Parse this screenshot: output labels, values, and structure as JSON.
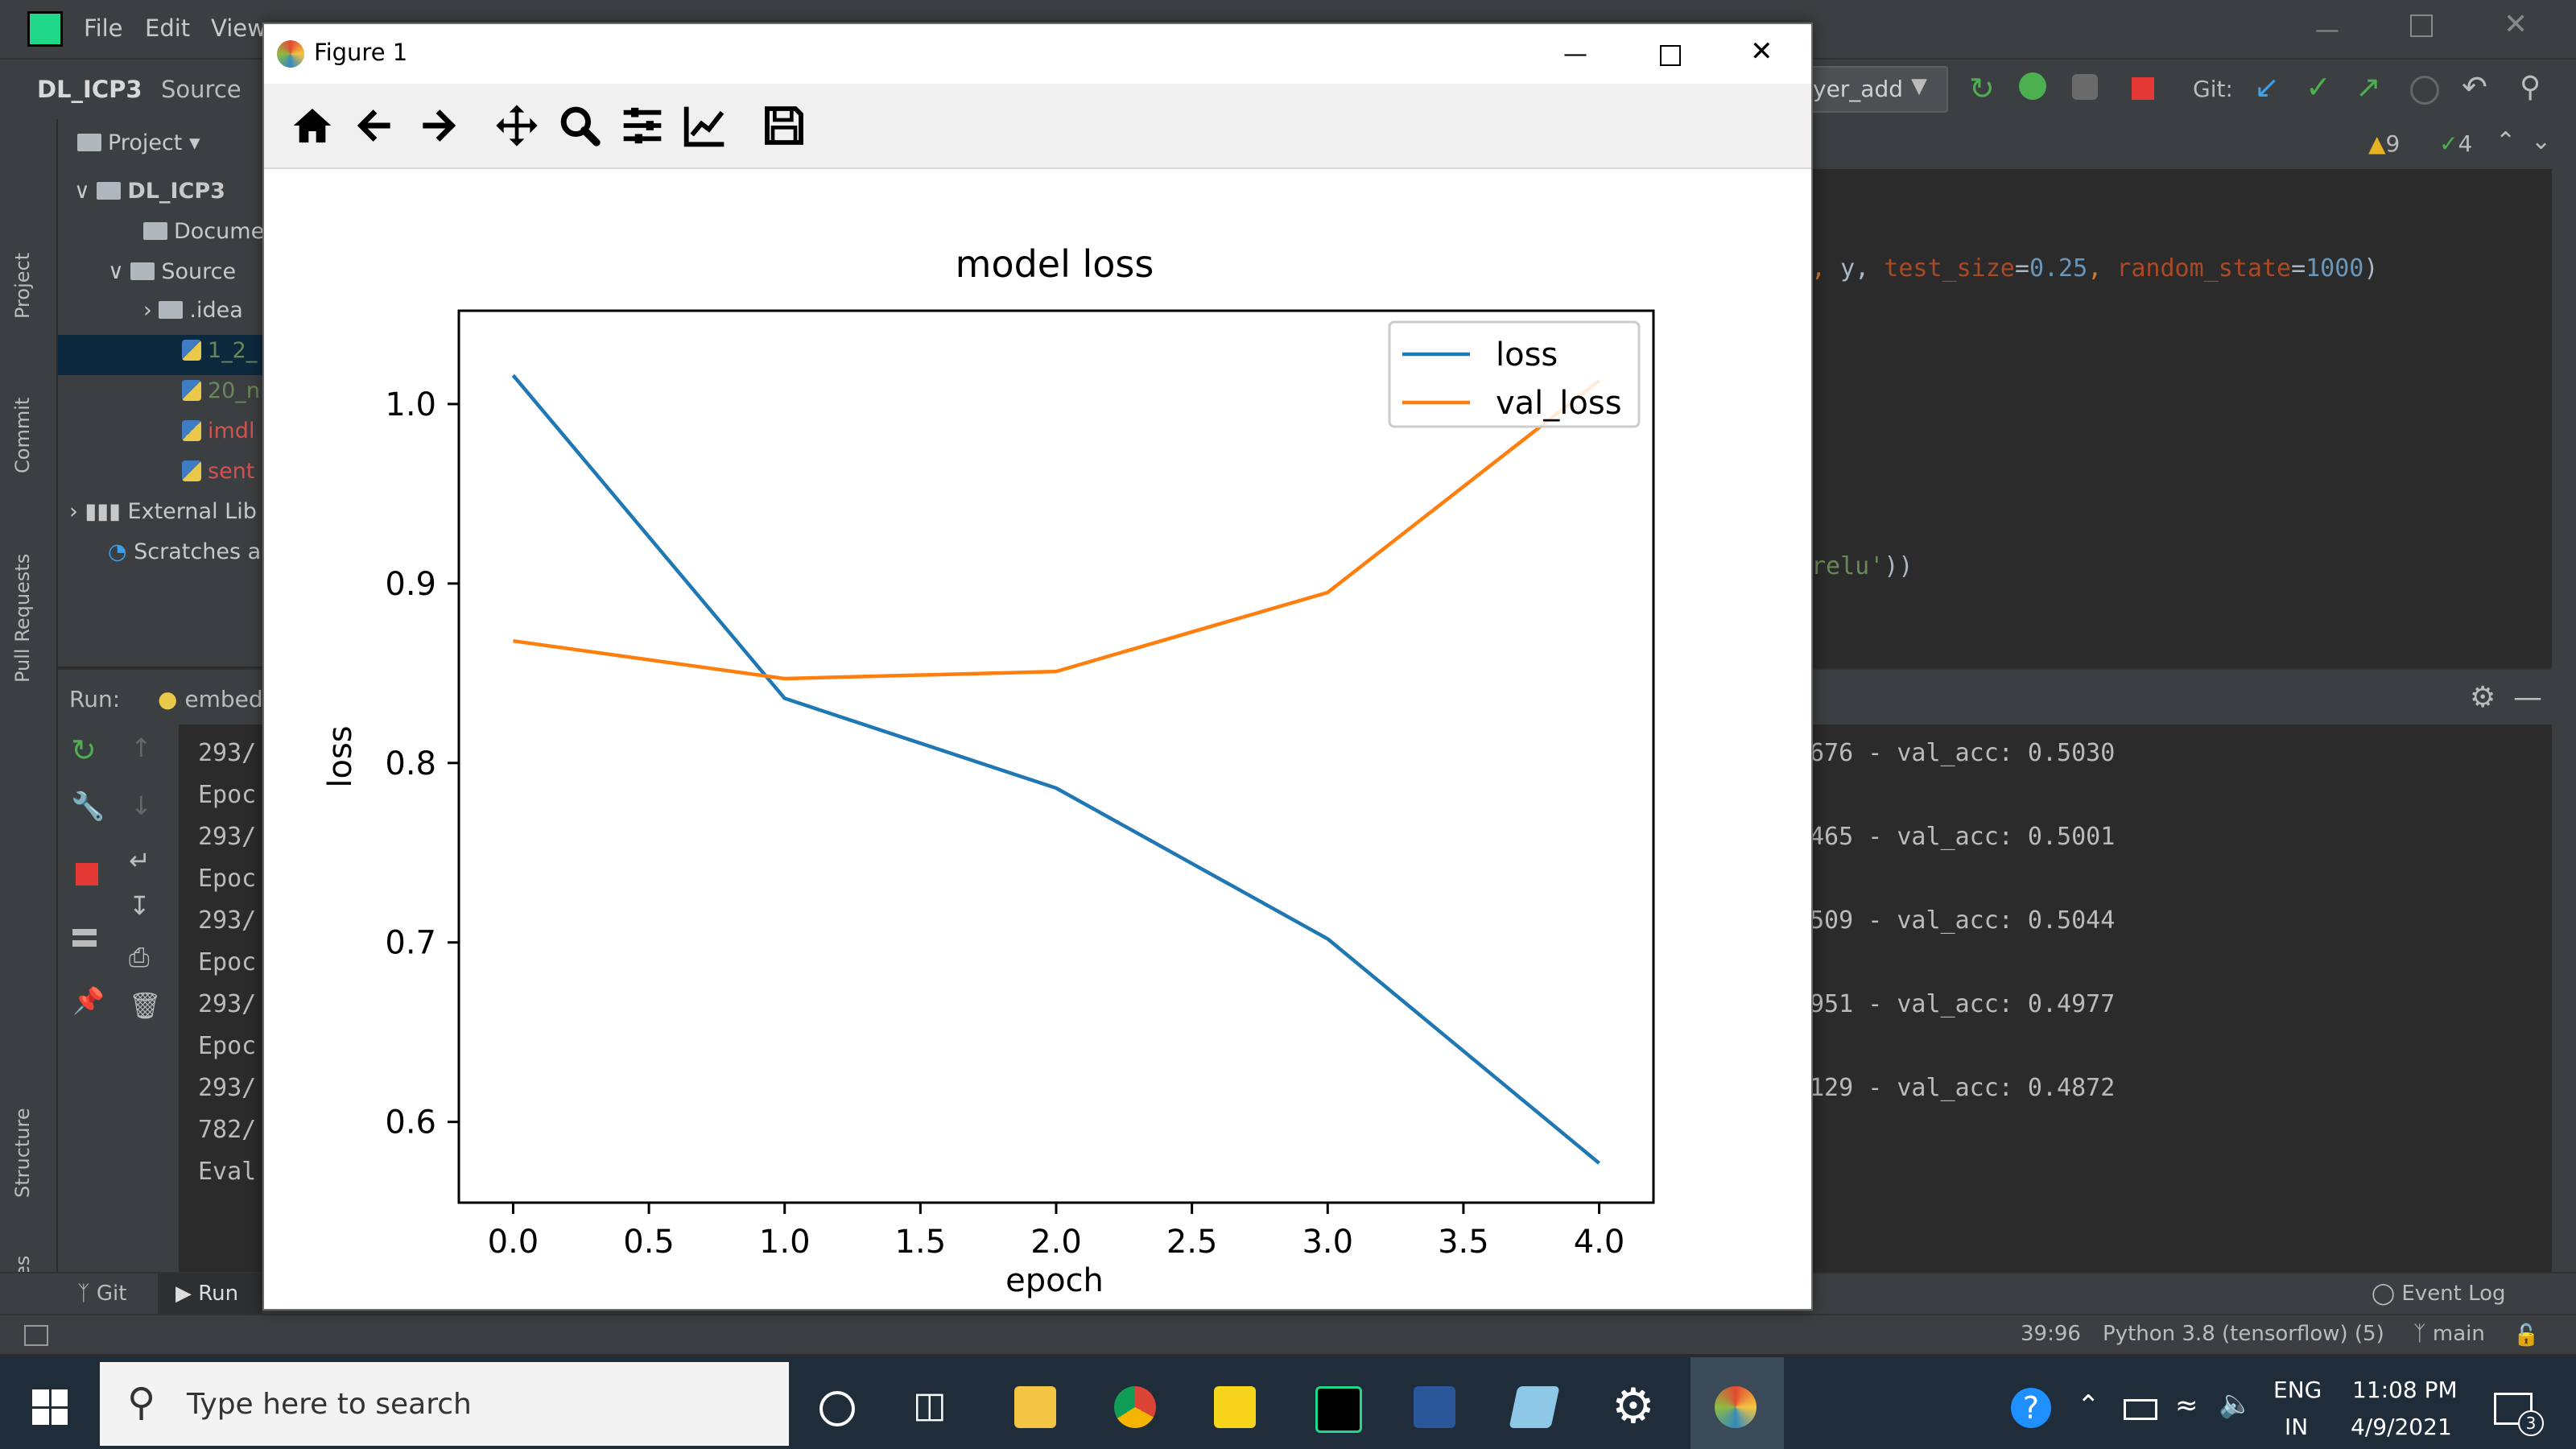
{
  "ide": {
    "menu": [
      "File",
      "Edit",
      "View"
    ],
    "project_name": "DL_ICP3",
    "breadcrumb_item": "Source",
    "run_config": "yer_add",
    "git_label": "Git:",
    "warnings": "9",
    "checks": "4",
    "project_panel": {
      "title": "Project",
      "items": [
        {
          "label": "DL_ICP3",
          "kind": "folder"
        },
        {
          "label": "Docume",
          "kind": "folder"
        },
        {
          "label": "Source",
          "kind": "folder"
        },
        {
          "label": ".idea",
          "kind": "folder"
        },
        {
          "label": "1_2_",
          "kind": "py"
        },
        {
          "label": "20_n",
          "kind": "py"
        },
        {
          "label": "imdl",
          "kind": "py"
        },
        {
          "label": "sent",
          "kind": "py"
        },
        {
          "label": "External Lib",
          "kind": "lib"
        },
        {
          "label": "Scratches a",
          "kind": "scratch"
        }
      ]
    },
    "side_tabs": [
      "Project",
      "Commit",
      "Pull Requests",
      "Structure",
      "Favorites"
    ],
    "editor_lines": [
      ", y, test_size=0.25, random_state=1000)",
      "relu'))"
    ],
    "run_label": "Run:",
    "run_tab": "embed",
    "console_left": [
      "293/",
      "Epoc",
      "293/",
      "Epoc",
      "293/",
      "Epoc",
      "293/",
      "Epoc",
      "293/",
      "782/",
      "Eval"
    ],
    "console_right": [
      "676 - val_acc: 0.5030",
      "465 - val_acc: 0.5001",
      "509 - val_acc: 0.5044",
      "951 - val_acc: 0.4977",
      "129 - val_acc: 0.4872"
    ],
    "bottom_tabs": [
      "Git",
      "Run"
    ],
    "event_log": "Event Log",
    "status": {
      "position": "39:96",
      "interpreter": "Python 3.8 (tensorflow) (5)",
      "branch": "main"
    }
  },
  "figure": {
    "window_title": "Figure 1",
    "toolbar": [
      "home-icon",
      "back-icon",
      "forward-icon",
      "pan-icon",
      "zoom-icon",
      "subplots-icon",
      "edit-axes-icon",
      "save-icon"
    ]
  },
  "chart_data": {
    "type": "line",
    "title": "model loss",
    "xlabel": "epoch",
    "ylabel": "loss",
    "x": [
      0,
      1,
      2,
      3,
      4
    ],
    "xlim": [
      -0.2,
      4.2
    ],
    "ylim": [
      0.555,
      1.052
    ],
    "xticks": [
      "0.0",
      "0.5",
      "1.0",
      "1.5",
      "2.0",
      "2.5",
      "3.0",
      "3.5",
      "4.0"
    ],
    "xtick_values": [
      0,
      0.5,
      1,
      1.5,
      2,
      2.5,
      3,
      3.5,
      4
    ],
    "yticks": [
      "0.6",
      "0.7",
      "0.8",
      "0.9",
      "1.0"
    ],
    "ytick_values": [
      0.6,
      0.7,
      0.8,
      0.9,
      1.0
    ],
    "series": [
      {
        "name": "loss",
        "color": "#1f77b4",
        "values": [
          1.016,
          0.836,
          0.786,
          0.702,
          0.577
        ]
      },
      {
        "name": "val_loss",
        "color": "#ff7f0e",
        "values": [
          0.868,
          0.847,
          0.851,
          0.895,
          1.013
        ]
      }
    ],
    "legend": "top-right",
    "grid": false
  },
  "taskbar": {
    "search_placeholder": "Type here to search",
    "lang_top": "ENG",
    "lang_bottom": "IN",
    "time": "11:08 PM",
    "date": "4/9/2021",
    "notifications": "3"
  }
}
